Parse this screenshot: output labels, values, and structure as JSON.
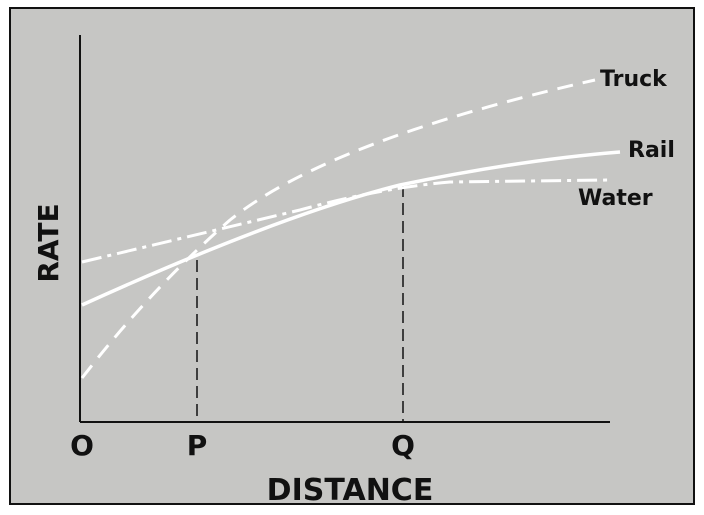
{
  "axes": {
    "y_label": "RATE",
    "x_label": "DISTANCE"
  },
  "points": [
    "O",
    "P",
    "Q"
  ],
  "curves": [
    {
      "label": "Truck"
    },
    {
      "label": "Rail"
    },
    {
      "label": "Water"
    }
  ]
}
